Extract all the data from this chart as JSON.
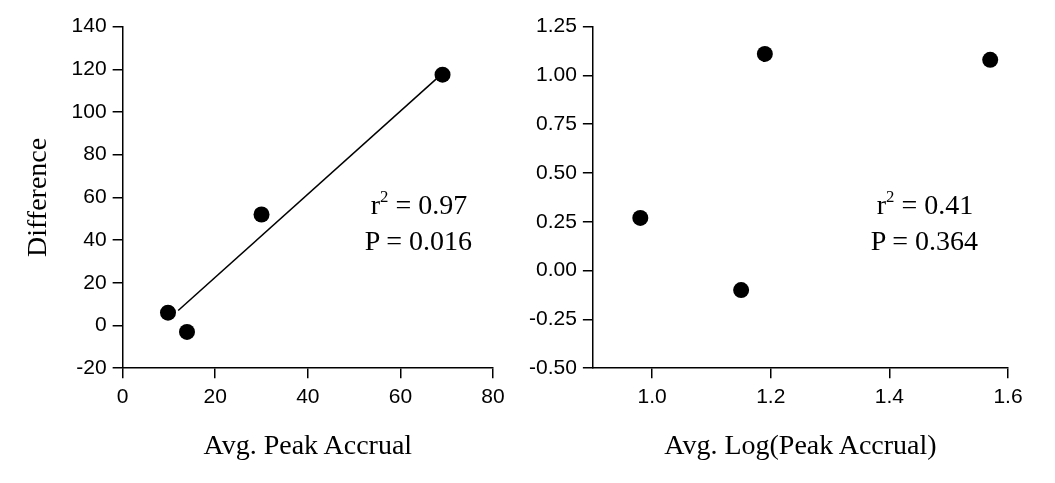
{
  "chart_data": [
    {
      "type": "scatter",
      "xlabel": "Avg. Peak Accrual",
      "ylabel": "Difference",
      "xlim": [
        0,
        80
      ],
      "xticks": [
        0,
        20,
        40,
        60,
        80
      ],
      "ylim": [
        -20,
        140
      ],
      "yticks": [
        -20,
        0,
        20,
        40,
        60,
        80,
        100,
        120,
        140
      ],
      "grid": false,
      "legend": false,
      "series": [
        {
          "type": "scatter",
          "color": "#000000",
          "marker": "circle",
          "x": [
            9.8,
            13.9,
            30,
            69.1
          ],
          "values": [
            6,
            -3,
            52,
            117.5
          ]
        },
        {
          "type": "line",
          "color": "#000000",
          "marker": "none",
          "line_style": "solid",
          "x": [
            12,
            68
          ],
          "values": [
            7,
            116
          ]
        }
      ],
      "annotations": [
        "r$^{2}$ = 0.97",
        "P = 0.016"
      ]
    },
    {
      "type": "scatter",
      "xlabel": "Avg. Log(Peak Accrual)",
      "xlim": [
        0.9,
        1.6
      ],
      "xticks": [
        {
          "value": 1.0,
          "label": "1.0"
        },
        {
          "value": 1.2,
          "label": "1.2"
        },
        {
          "value": 1.4,
          "label": "1.4"
        },
        {
          "value": 1.6,
          "label": "1.6"
        }
      ],
      "ylim": [
        -0.5,
        1.25
      ],
      "yticks": [
        {
          "value": -0.5,
          "label": "-0.50"
        },
        {
          "value": -0.25,
          "label": "-0.25"
        },
        {
          "value": 0,
          "label": "0.00"
        },
        {
          "value": 0.25,
          "label": "0.25"
        },
        {
          "value": 0.5,
          "label": "0.50"
        },
        {
          "value": 0.75,
          "label": "0.75"
        },
        {
          "value": 1.0,
          "label": "1.00"
        },
        {
          "value": 1.25,
          "label": "1.25"
        }
      ],
      "grid": false,
      "legend": false,
      "series": [
        {
          "type": "scatter",
          "color": "#000000",
          "marker": "circle",
          "x": [
            0.98,
            1.15,
            1.19,
            1.57
          ],
          "values": [
            0.27,
            -0.1,
            1.11,
            1.08
          ]
        }
      ],
      "annotations": [
        "r$^{2}$ = 0.41",
        "P = 0.364"
      ]
    }
  ]
}
